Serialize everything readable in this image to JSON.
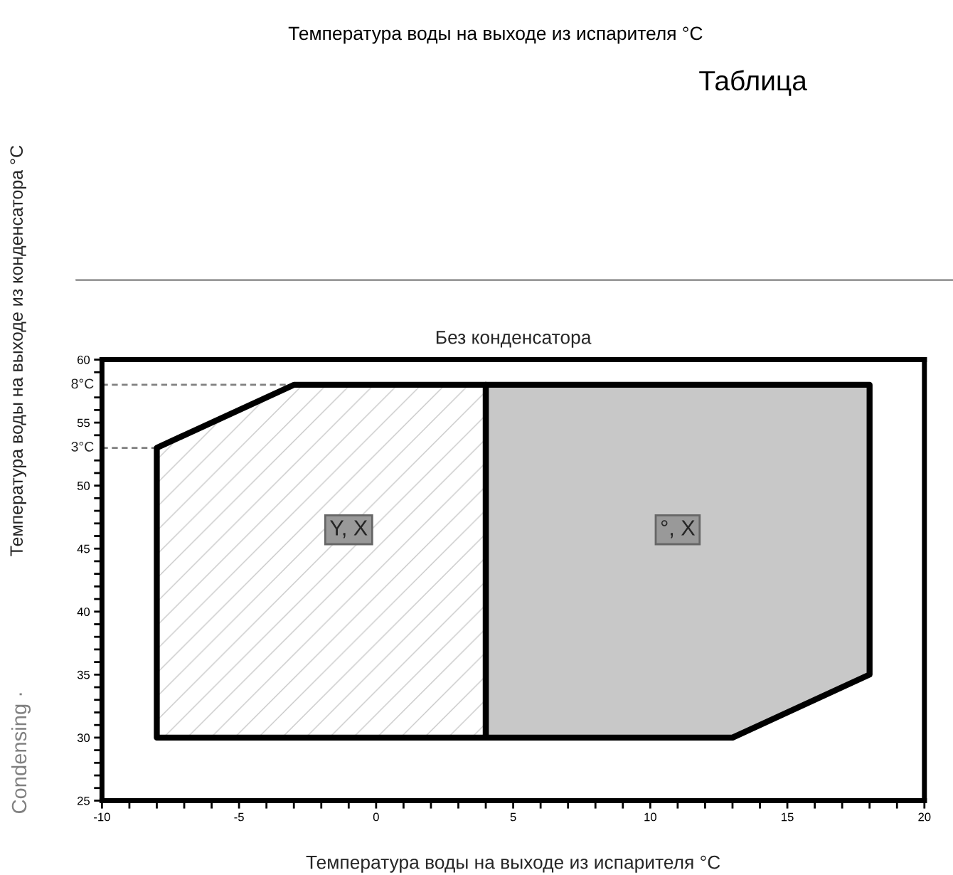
{
  "chart_data": {
    "type": "area",
    "title": "Без конденсатора",
    "xlabel": "Температура воды на выходе из испарителя °C",
    "ylabel": "Температура воды на выходе из конденсатора °C",
    "series": [
      {
        "type": "area",
        "color": "#ffffff",
        "x": [
          -8,
          -8,
          -3,
          4,
          4
        ],
        "values": [
          30,
          53,
          58,
          58,
          30
        ]
      },
      {
        "type": "area",
        "color": "#c8c8c8",
        "x": [
          4,
          4,
          18,
          18,
          13
        ],
        "values": [
          30,
          58,
          58,
          35,
          30
        ]
      }
    ],
    "xlim": [
      -10,
      20
    ],
    "xticks": [
      -10,
      {
        "value": -9,
        "label": null
      },
      {
        "value": -8,
        "label": null
      },
      {
        "value": -7,
        "label": null
      },
      {
        "value": -6,
        "label": null
      },
      -5,
      {
        "value": -4,
        "label": null
      },
      {
        "value": -3,
        "label": null
      },
      {
        "value": -2,
        "label": null
      },
      {
        "value": -1,
        "label": null
      },
      0,
      {
        "value": 1,
        "label": null
      },
      {
        "value": 2,
        "label": null
      },
      {
        "value": 3,
        "label": null
      },
      {
        "value": 4,
        "label": null
      },
      5,
      {
        "value": 6,
        "label": null
      },
      {
        "value": 7,
        "label": null
      },
      {
        "value": 8,
        "label": null
      },
      {
        "value": 9,
        "label": null
      },
      10,
      {
        "value": 11,
        "label": null
      },
      {
        "value": 12,
        "label": null
      },
      {
        "value": 13,
        "label": null
      },
      {
        "value": 14,
        "label": null
      },
      15,
      {
        "value": 16,
        "label": null
      },
      {
        "value": 17,
        "label": null
      },
      {
        "value": 18,
        "label": null
      },
      {
        "value": 19,
        "label": null
      },
      20
    ],
    "ylim": [
      25,
      60
    ],
    "yticks": [
      25,
      {
        "value": 26,
        "label": null
      },
      {
        "value": 27,
        "label": null
      },
      {
        "value": 28,
        "label": null
      },
      {
        "value": 29,
        "label": null
      },
      30,
      {
        "value": 31,
        "label": null
      },
      {
        "value": 32,
        "label": null
      },
      {
        "value": 33,
        "label": null
      },
      {
        "value": 34,
        "label": null
      },
      35,
      {
        "value": 36,
        "label": null
      },
      {
        "value": 37,
        "label": null
      },
      {
        "value": 38,
        "label": null
      },
      {
        "value": 39,
        "label": null
      },
      40,
      {
        "value": 41,
        "label": null
      },
      {
        "value": 42,
        "label": null
      },
      {
        "value": 43,
        "label": null
      },
      {
        "value": 44,
        "label": null
      },
      45,
      {
        "value": 46,
        "label": null
      },
      {
        "value": 47,
        "label": null
      },
      {
        "value": 48,
        "label": null
      },
      {
        "value": 49,
        "label": null
      },
      50,
      {
        "value": 51,
        "label": null
      },
      {
        "value": 52,
        "label": null
      },
      {
        "value": 54,
        "label": null
      },
      55,
      {
        "value": 56,
        "label": null
      },
      {
        "value": 57,
        "label": null
      },
      {
        "value": 59,
        "label": null
      },
      60
    ],
    "ref_lines": [
      {
        "axis": "y",
        "value": 58,
        "label": "8°C",
        "line_style": "dashed",
        "color": "#808080"
      },
      {
        "axis": "y",
        "value": 53,
        "label": "3°C",
        "line_style": "dashed",
        "color": "#808080"
      }
    ],
    "annotations": [
      {
        "text": "Y, X",
        "x": -1,
        "y": 46.5
      },
      {
        "text": "°, X",
        "x": 11,
        "y": 46.5
      },
      "Температура воды на выходе из испарителя °C",
      "Таблица",
      "Condensing ·"
    ],
    "grid": false,
    "legend": false
  }
}
